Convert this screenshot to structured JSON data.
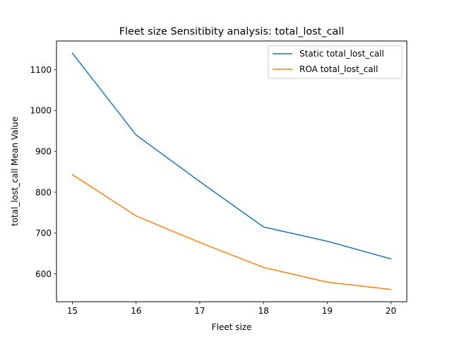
{
  "chart_data": {
    "type": "line",
    "title": "Fleet size Sensitibity analysis: total_lost_call",
    "xlabel": "Fleet size",
    "ylabel": "total_lost_call Mean Value",
    "x": [
      15,
      16,
      17,
      18,
      19,
      20
    ],
    "xticks": [
      "15",
      "16",
      "17",
      "18",
      "19",
      "20"
    ],
    "yticks": [
      600,
      700,
      800,
      900,
      1000,
      1100
    ],
    "xlim": [
      14.75,
      20.25
    ],
    "ylim": [
      532,
      1170
    ],
    "grid": false,
    "legend_position": "top-right",
    "series": [
      {
        "name": "Static total_lost_call",
        "color": "#1f77b4",
        "values": [
          1140,
          940,
          826,
          715,
          680,
          637
        ]
      },
      {
        "name": "ROA total_lost_call",
        "color": "#ff7f0e",
        "values": [
          843,
          742,
          677,
          616,
          580,
          562
        ]
      }
    ]
  }
}
